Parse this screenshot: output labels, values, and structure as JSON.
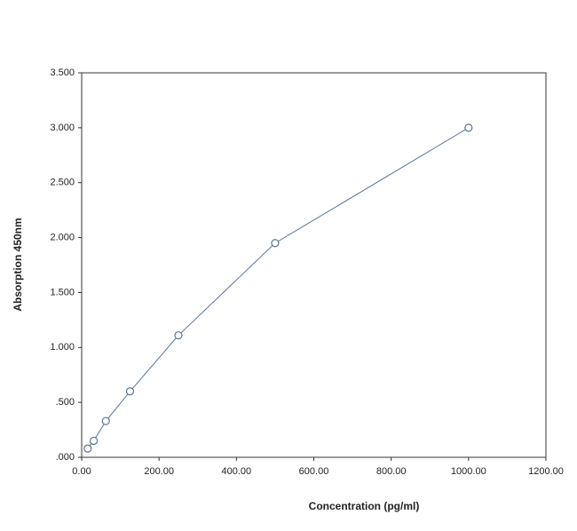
{
  "chart_data": {
    "type": "line",
    "x_label": "Concentration (pg/ml)",
    "y_label": "Absorption 450nm",
    "x": [
      15.6,
      31.25,
      62.5,
      125,
      250,
      500,
      1000
    ],
    "values": [
      0.08,
      0.15,
      0.33,
      0.6,
      1.11,
      1.95,
      3.0
    ],
    "color": "#5b7394",
    "marker": "open-circle",
    "xlim": [
      0,
      1200
    ],
    "xticks": [
      {
        "value": 0,
        "label": "0.00"
      },
      {
        "value": 200,
        "label": "200.00"
      },
      {
        "value": 400,
        "label": "400.00"
      },
      {
        "value": 600,
        "label": "600.00"
      },
      {
        "value": 800,
        "label": "800.00"
      },
      {
        "value": 1000,
        "label": "1000.00"
      },
      {
        "value": 1200,
        "label": "1200.00"
      }
    ],
    "ylim": [
      0,
      3.5
    ],
    "yticks": [
      {
        "value": 0,
        "label": ".000"
      },
      {
        "value": 0.5,
        "label": ".500"
      },
      {
        "value": 1,
        "label": "1.000"
      },
      {
        "value": 1.5,
        "label": "1.500"
      },
      {
        "value": 2,
        "label": "2.000"
      },
      {
        "value": 2.5,
        "label": "2.500"
      },
      {
        "value": 3,
        "label": "3.000"
      },
      {
        "value": 3.5,
        "label": "3.500"
      }
    ],
    "grid": false
  }
}
